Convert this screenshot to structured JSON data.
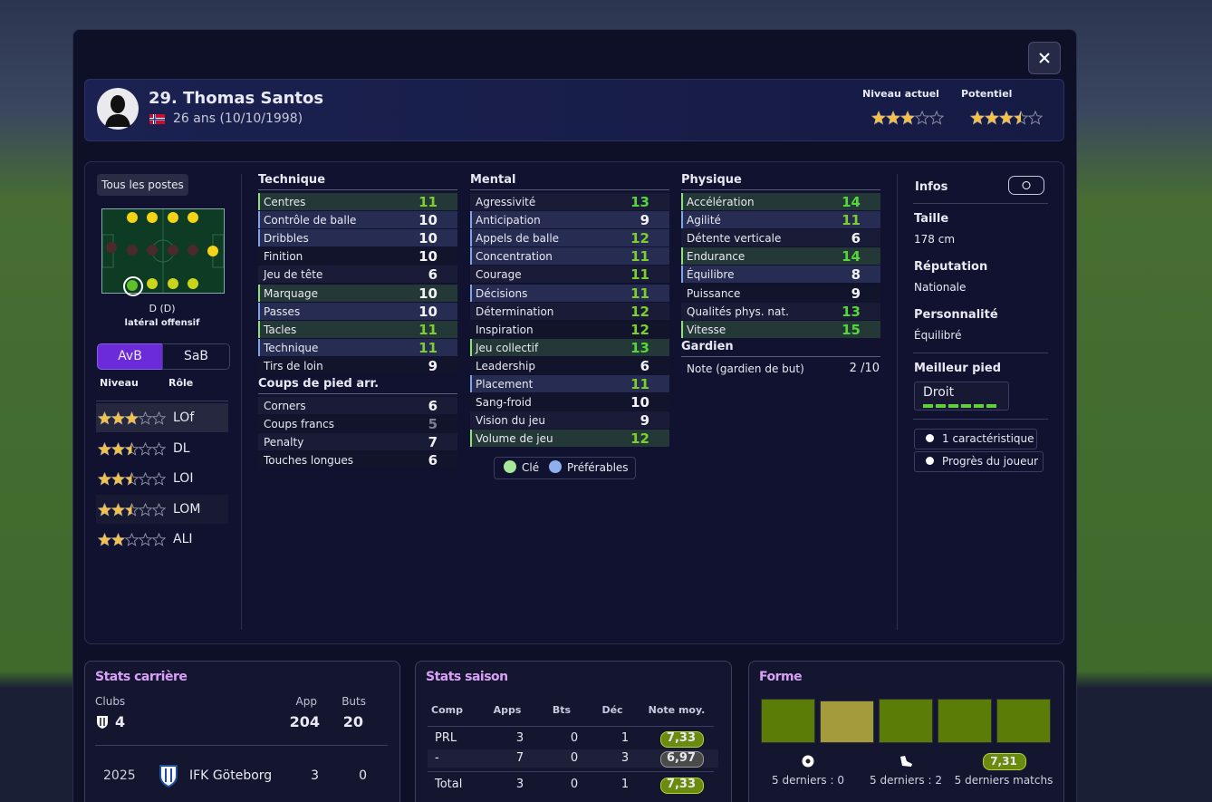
{
  "header": {
    "name": "29. Thomas Santos",
    "age": "26 ans (10/10/1998)",
    "current_label": "Niveau actuel",
    "current_stars": 3,
    "potential_label": "Potentiel",
    "potential_stars": 3.5
  },
  "positions": {
    "all_button": "Tous les postes",
    "position": "D (D)",
    "role": "latéral offensif",
    "tabs": [
      "AvB",
      "SaB"
    ],
    "columns": [
      "Niveau",
      "Rôle"
    ],
    "roles": [
      {
        "stars": 3,
        "name": "LOf"
      },
      {
        "stars": 2.5,
        "name": "DL"
      },
      {
        "stars": 2.5,
        "name": "LOI"
      },
      {
        "stars": 2.5,
        "name": "LOM"
      },
      {
        "stars": 2,
        "name": "ALI"
      }
    ]
  },
  "attributes": {
    "groups": [
      {
        "title": "Technique",
        "rows": [
          {
            "name": "Centres",
            "value": 11,
            "highlight": "key"
          },
          {
            "name": "Contrôle de balle",
            "value": 10,
            "highlight": "preferred"
          },
          {
            "name": "Dribbles",
            "value": 10,
            "highlight": "preferred"
          },
          {
            "name": "Finition",
            "value": 10
          },
          {
            "name": "Jeu de tête",
            "value": 6
          },
          {
            "name": "Marquage",
            "value": 10,
            "highlight": "key"
          },
          {
            "name": "Passes",
            "value": 10,
            "highlight": "preferred"
          },
          {
            "name": "Tacles",
            "value": 11,
            "highlight": "key"
          },
          {
            "name": "Technique",
            "value": 11,
            "highlight": "preferred"
          },
          {
            "name": "Tirs de loin",
            "value": 9
          }
        ]
      },
      {
        "title": "Coups de pied arr.",
        "rows": [
          {
            "name": "Corners",
            "value": 6
          },
          {
            "name": "Coups francs",
            "value": 5
          },
          {
            "name": "Penalty",
            "value": 7
          },
          {
            "name": "Touches longues",
            "value": 6
          }
        ]
      },
      {
        "title": "Mental",
        "rows": [
          {
            "name": "Agressivité",
            "value": 13
          },
          {
            "name": "Anticipation",
            "value": 9,
            "highlight": "preferred"
          },
          {
            "name": "Appels de balle",
            "value": 12,
            "highlight": "preferred"
          },
          {
            "name": "Concentration",
            "value": 11,
            "highlight": "preferred"
          },
          {
            "name": "Courage",
            "value": 11
          },
          {
            "name": "Décisions",
            "value": 11,
            "highlight": "preferred"
          },
          {
            "name": "Détermination",
            "value": 12
          },
          {
            "name": "Inspiration",
            "value": 12
          },
          {
            "name": "Jeu collectif",
            "value": 13,
            "highlight": "key"
          },
          {
            "name": "Leadership",
            "value": 6
          },
          {
            "name": "Placement",
            "value": 11,
            "highlight": "preferred"
          },
          {
            "name": "Sang-froid",
            "value": 10
          },
          {
            "name": "Vision du jeu",
            "value": 9
          },
          {
            "name": "Volume de jeu",
            "value": 12,
            "highlight": "key"
          }
        ]
      },
      {
        "title": "Physique",
        "rows": [
          {
            "name": "Accélération",
            "value": 14,
            "highlight": "key"
          },
          {
            "name": "Agilité",
            "value": 11,
            "highlight": "preferred"
          },
          {
            "name": "Détente verticale",
            "value": 6
          },
          {
            "name": "Endurance",
            "value": 14,
            "highlight": "key"
          },
          {
            "name": "Équilibre",
            "value": 8,
            "highlight": "preferred"
          },
          {
            "name": "Puissance",
            "value": 9
          },
          {
            "name": "Qualités phys. nat.",
            "value": 13
          },
          {
            "name": "Vitesse",
            "value": 15,
            "highlight": "key"
          }
        ]
      },
      {
        "title": "Gardien",
        "rows": [
          {
            "name": "Note (gardien de but)",
            "value": "2 /10"
          }
        ]
      }
    ],
    "legend": [
      "Clé",
      "Préférables"
    ]
  },
  "infos": {
    "title": "Infos",
    "items": [
      {
        "label": "Taille",
        "value": "178 cm"
      },
      {
        "label": "Réputation",
        "value": "Nationale"
      },
      {
        "label": "Personnalité",
        "value": "Équilibré"
      }
    ],
    "foot_label": "Meilleur pied",
    "foot": "Droit",
    "buttons": [
      "1 caractéristique",
      "Progrès du joueur"
    ]
  },
  "career": {
    "title": "Stats carrière",
    "clubs_label": "Clubs",
    "clubs": 4,
    "apps_label": "App",
    "apps": 204,
    "goals_label": "Buts",
    "goals": 20,
    "rows": [
      [
        2025,
        "IFK Göteborg",
        3,
        0
      ]
    ]
  },
  "season": {
    "title": "Stats saison",
    "columns": [
      "Comp",
      "Apps",
      "Bts",
      "Déc",
      "Note moy."
    ],
    "rows": [
      [
        "PRL",
        3,
        0,
        1,
        "7,33"
      ],
      [
        "-",
        7,
        0,
        3,
        "6,97"
      ],
      [
        "Total",
        3,
        0,
        1,
        "7,33"
      ]
    ]
  },
  "form": {
    "title": "Forme",
    "colors": [
      "#5b7d08",
      "#a49b3c",
      "#5b7d08",
      "#5b7d08",
      "#5b7d08"
    ],
    "badge": "7,31",
    "labels": [
      "5 derniers : 0",
      "5 derniers : 2",
      "5 derniers matchs"
    ]
  }
}
